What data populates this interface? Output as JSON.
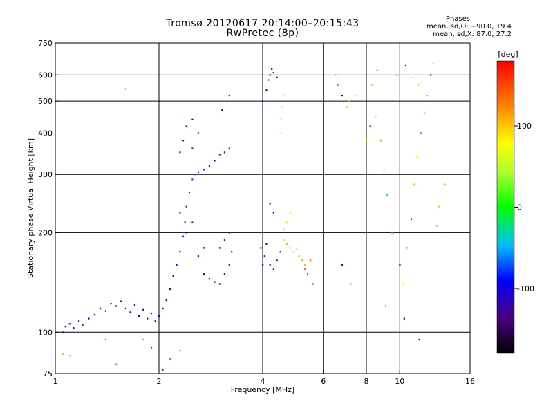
{
  "header": {
    "title_line1": "Tromsø 20120617 20:14:00–20:15:43",
    "title_line2": "RwPretec (8p)",
    "stats_heading": "Phases",
    "stats_o": "mean, sd,O: −90.0, 19.4",
    "stats_x": "mean, sd,X: 87.0, 27.2"
  },
  "chart_data": {
    "type": "scatter",
    "xlabel": "Frequency [MHz]",
    "ylabel": "Stationary phase Virtual Height [km]",
    "x_scale": "log",
    "y_scale": "log",
    "xlim": [
      1,
      16
    ],
    "ylim": [
      75,
      750
    ],
    "x_ticks": [
      1,
      2,
      4,
      6,
      8,
      10,
      16
    ],
    "y_ticks": [
      75,
      100,
      200,
      300,
      400,
      500,
      600,
      750
    ],
    "grid_x": [
      2,
      4,
      6,
      8,
      10
    ],
    "grid_y": [
      100,
      200,
      300,
      400,
      500,
      600
    ],
    "grid": true,
    "colorbar": {
      "label": "[deg]",
      "ticks": [
        100,
        0,
        -100
      ],
      "range": [
        -180,
        180
      ]
    },
    "series": [
      {
        "points": [
          [
            1.05,
            100,
            -100
          ],
          [
            1.07,
            104,
            -110
          ],
          [
            1.1,
            106,
            -105
          ],
          [
            1.13,
            103,
            -95
          ],
          [
            1.17,
            108,
            -100
          ],
          [
            1.2,
            105,
            -115
          ],
          [
            1.25,
            110,
            -100
          ],
          [
            1.3,
            113,
            -90
          ],
          [
            1.35,
            118,
            -105
          ],
          [
            1.4,
            116,
            -110
          ],
          [
            1.45,
            122,
            -100
          ],
          [
            1.5,
            120,
            -95
          ],
          [
            1.55,
            124,
            -110
          ],
          [
            1.6,
            118,
            -100
          ],
          [
            1.65,
            115,
            -105
          ],
          [
            1.7,
            121,
            -100
          ],
          [
            1.75,
            112,
            -110
          ],
          [
            1.8,
            117,
            -95
          ],
          [
            1.85,
            110,
            -100
          ],
          [
            1.9,
            114,
            -105
          ],
          [
            1.95,
            108,
            -110
          ],
          [
            2.0,
            112,
            -100
          ],
          [
            2.05,
            118,
            -90
          ],
          [
            2.1,
            125,
            -100
          ],
          [
            2.15,
            135,
            -105
          ],
          [
            2.2,
            148,
            -95
          ],
          [
            2.25,
            160,
            -85
          ],
          [
            2.3,
            175,
            -90
          ],
          [
            2.35,
            195,
            -80
          ],
          [
            2.38,
            215,
            -85
          ],
          [
            2.4,
            240,
            -75
          ],
          [
            2.45,
            265,
            -80
          ],
          [
            2.5,
            290,
            -70
          ],
          [
            2.55,
            300,
            -75
          ],
          [
            2.6,
            305,
            -80
          ],
          [
            2.7,
            310,
            -75
          ],
          [
            2.8,
            318,
            -90
          ],
          [
            2.9,
            330,
            -110
          ],
          [
            3.0,
            345,
            -120
          ],
          [
            3.1,
            350,
            -125
          ],
          [
            3.2,
            360,
            -130
          ],
          [
            2.3,
            350,
            -85
          ],
          [
            2.35,
            380,
            -90
          ],
          [
            2.4,
            420,
            -95
          ],
          [
            2.5,
            440,
            -100
          ],
          [
            2.6,
            400,
            -85
          ],
          [
            2.5,
            360,
            -80
          ],
          [
            2.7,
            150,
            -100
          ],
          [
            2.8,
            145,
            -110
          ],
          [
            2.9,
            142,
            -115
          ],
          [
            3.0,
            140,
            -125
          ],
          [
            3.1,
            150,
            -130
          ],
          [
            3.2,
            160,
            -135
          ],
          [
            3.25,
            175,
            -140
          ],
          [
            3.0,
            180,
            -130
          ],
          [
            3.1,
            190,
            -135
          ],
          [
            3.2,
            200,
            -130
          ],
          [
            2.6,
            170,
            -90
          ],
          [
            2.7,
            180,
            -95
          ],
          [
            2.4,
            200,
            -85
          ],
          [
            2.5,
            215,
            -80
          ],
          [
            2.3,
            230,
            -80
          ],
          [
            3.05,
            470,
            -115
          ],
          [
            3.2,
            520,
            -105
          ],
          [
            3.95,
            180,
            -110
          ],
          [
            4.0,
            160,
            -105
          ],
          [
            4.05,
            170,
            -100
          ],
          [
            4.1,
            185,
            -95
          ],
          [
            4.2,
            160,
            -100
          ],
          [
            4.3,
            155,
            -110
          ],
          [
            4.4,
            165,
            -105
          ],
          [
            4.5,
            175,
            -100
          ],
          [
            4.3,
            230,
            -105
          ],
          [
            4.2,
            245,
            -110
          ],
          [
            4.15,
            580,
            -110
          ],
          [
            4.2,
            600,
            -120
          ],
          [
            4.3,
            610,
            -115
          ],
          [
            4.4,
            590,
            -110
          ],
          [
            4.25,
            625,
            -120
          ],
          [
            4.1,
            540,
            -100
          ],
          [
            4.0,
            500,
            -95
          ],
          [
            4.6,
            190,
            100
          ],
          [
            4.7,
            185,
            110
          ],
          [
            4.8,
            180,
            105
          ],
          [
            4.9,
            175,
            95
          ],
          [
            5.0,
            178,
            100
          ],
          [
            5.1,
            170,
            110
          ],
          [
            5.2,
            165,
            115
          ],
          [
            5.3,
            160,
            105
          ],
          [
            4.7,
            215,
            90
          ],
          [
            4.8,
            230,
            95
          ],
          [
            4.6,
            205,
            100
          ],
          [
            4.5,
            440,
            80
          ],
          [
            4.55,
            480,
            90
          ],
          [
            4.6,
            520,
            85
          ],
          [
            4.5,
            400,
            70
          ],
          [
            5.3,
            155,
            150
          ],
          [
            5.4,
            150,
            160
          ],
          [
            5.6,
            140,
            145
          ],
          [
            5.5,
            165,
            140
          ],
          [
            6.5,
            600,
            120
          ],
          [
            6.6,
            560,
            150
          ],
          [
            6.8,
            520,
            -100
          ],
          [
            7.0,
            480,
            130
          ],
          [
            7.1,
            500,
            110
          ],
          [
            7.5,
            520,
            40
          ],
          [
            8.0,
            380,
            90
          ],
          [
            8.2,
            420,
            -60
          ],
          [
            8.5,
            450,
            30
          ],
          [
            8.8,
            380,
            120
          ],
          [
            9.0,
            310,
            60
          ],
          [
            9.2,
            260,
            -20
          ],
          [
            9.5,
            200,
            150
          ],
          [
            10.0,
            160,
            -100
          ],
          [
            10.2,
            140,
            80
          ],
          [
            10.5,
            180,
            120
          ],
          [
            10.8,
            220,
            -120
          ],
          [
            11.0,
            280,
            100
          ],
          [
            11.2,
            340,
            60
          ],
          [
            11.5,
            400,
            -80
          ],
          [
            11.8,
            460,
            110
          ],
          [
            12.0,
            520,
            140
          ],
          [
            12.3,
            600,
            -110
          ],
          [
            12.5,
            650,
            90
          ],
          [
            8.3,
            560,
            40
          ],
          [
            8.6,
            620,
            120
          ],
          [
            9.8,
            600,
            -10
          ],
          [
            10.4,
            640,
            -120
          ],
          [
            10.9,
            590,
            90
          ],
          [
            11.3,
            560,
            100
          ],
          [
            6.8,
            160,
            -130
          ],
          [
            7.2,
            140,
            120
          ],
          [
            9.1,
            120,
            140
          ],
          [
            10.3,
            110,
            -100
          ],
          [
            11.4,
            95,
            -90
          ],
          [
            12.8,
            210,
            110
          ],
          [
            13.0,
            240,
            100
          ],
          [
            13.5,
            280,
            120
          ],
          [
            1.6,
            545,
            -30
          ],
          [
            1.05,
            86,
            110
          ],
          [
            1.1,
            85,
            105
          ],
          [
            1.4,
            95,
            150
          ],
          [
            1.5,
            80,
            140
          ],
          [
            1.9,
            90,
            -130
          ],
          [
            2.05,
            77,
            -100
          ],
          [
            2.15,
            83,
            140
          ],
          [
            2.3,
            88,
            130
          ],
          [
            1.8,
            95,
            120
          ]
        ]
      }
    ]
  }
}
